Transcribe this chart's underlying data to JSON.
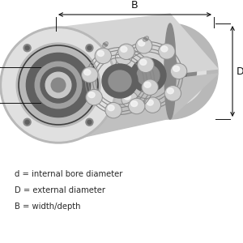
{
  "background_color": "#ffffff",
  "legend_lines": [
    "d = internal bore diameter",
    "D = external diameter",
    "B = width/depth"
  ],
  "legend_fontsize": 7.2,
  "legend_color": "#2a2a2a",
  "dim_fontsize": 9,
  "dim_color": "#111111",
  "arrow_color": "#111111",
  "line_color": "#111111",
  "metal_light": "#e0e0e0",
  "metal_mid": "#b8b8b8",
  "metal_dark": "#888888",
  "metal_darker": "#606060",
  "metal_shadow": "#404040",
  "ball_color": "#d0d0d0",
  "ball_shadow": "#909090",
  "ball_highlight": "#f5f5f5"
}
